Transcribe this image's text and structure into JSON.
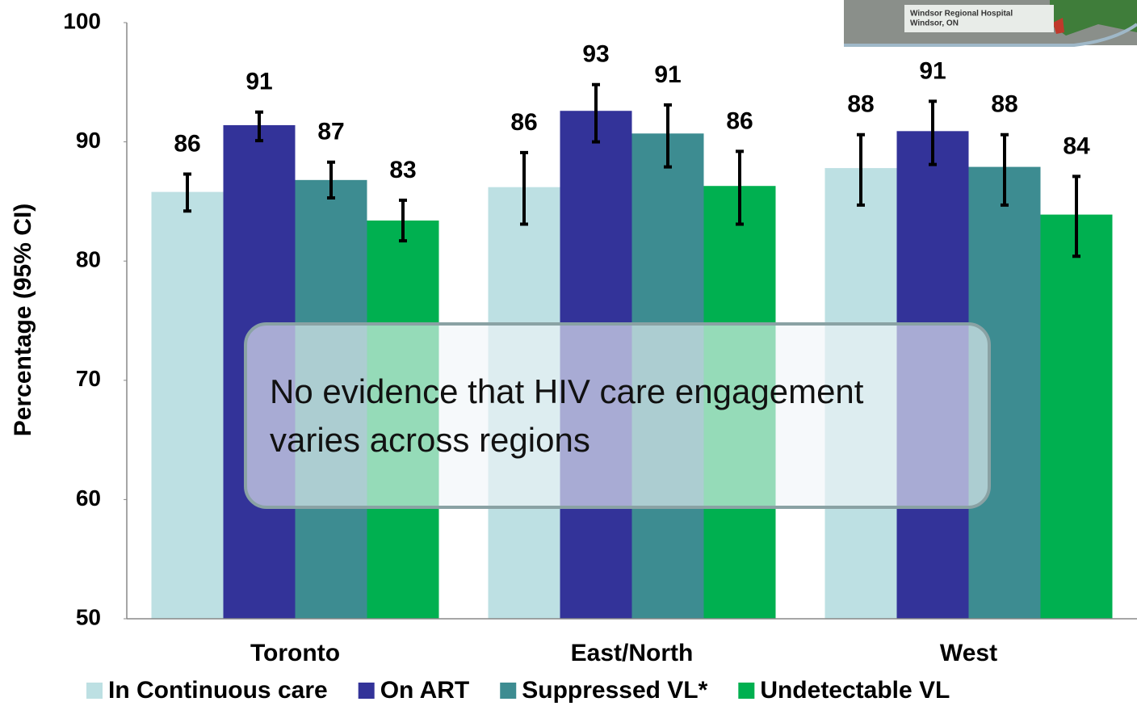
{
  "chart_data": {
    "type": "bar",
    "y_label": "Percentage (95% CI)",
    "categories": [
      "Toronto",
      "East/North",
      "West"
    ],
    "ylim": [
      50,
      100
    ],
    "yticks": [
      50,
      60,
      70,
      80,
      90,
      100
    ],
    "grid": false,
    "series": [
      {
        "name": "In Continuous care",
        "color": "#bde0e3",
        "values": [
          85.8,
          86.2,
          87.8
        ],
        "value_labels": [
          "86",
          "86",
          "88"
        ],
        "ci_low": [
          84.2,
          83.1,
          84.7
        ],
        "ci_high": [
          87.3,
          89.1,
          90.6
        ]
      },
      {
        "name": "On ART",
        "color": "#333399",
        "values": [
          91.4,
          92.6,
          90.9
        ],
        "value_labels": [
          "91",
          "93",
          "91"
        ],
        "ci_low": [
          90.1,
          90.0,
          88.1
        ],
        "ci_high": [
          92.5,
          94.8,
          93.4
        ]
      },
      {
        "name": "Suppressed VL*",
        "color": "#3d8c91",
        "values": [
          86.8,
          90.7,
          87.9
        ],
        "value_labels": [
          "87",
          "91",
          "88"
        ],
        "ci_low": [
          85.3,
          87.9,
          84.7
        ],
        "ci_high": [
          88.3,
          93.1,
          90.6
        ]
      },
      {
        "name": "Undetectable VL",
        "color": "#00b050",
        "values": [
          83.4,
          86.3,
          83.9
        ],
        "value_labels": [
          "83",
          "86",
          "84"
        ],
        "ci_low": [
          81.7,
          83.1,
          80.4
        ],
        "ci_high": [
          85.1,
          89.2,
          87.1
        ]
      }
    ],
    "annotation": [
      "No evidence that HIV care engagement",
      "varies across regions"
    ],
    "inset": [
      "Windsor Regional Hospital",
      "Windsor, ON"
    ]
  }
}
